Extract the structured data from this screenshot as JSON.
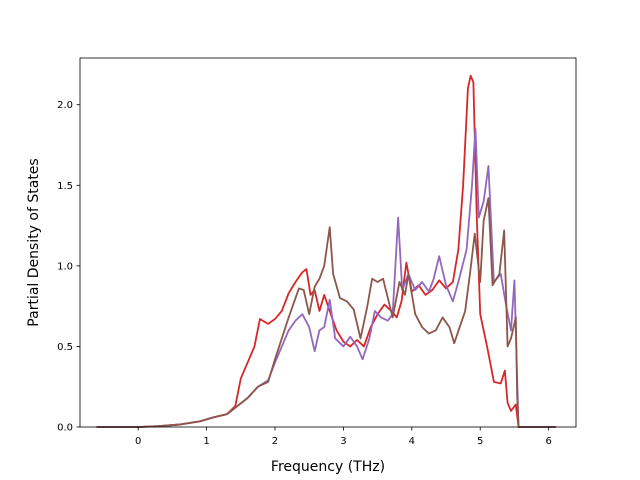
{
  "chart_data": {
    "type": "line",
    "title": "",
    "xlabel": "Frequency (THz)",
    "ylabel": "Partial Density of States",
    "xlim": [
      -0.85,
      6.4
    ],
    "ylim": [
      0.0,
      2.29
    ],
    "xticks": [
      0,
      1,
      2,
      3,
      4,
      5,
      6
    ],
    "yticks": [
      0.0,
      0.5,
      1.0,
      1.5,
      2.0
    ],
    "xtick_labels": [
      "0",
      "1",
      "2",
      "3",
      "4",
      "5",
      "6"
    ],
    "ytick_labels": [
      "0.0",
      "0.5",
      "1.0",
      "1.5",
      "2.0"
    ],
    "grid": false,
    "legend": "none",
    "series": [
      {
        "color": "#d62728",
        "points": [
          [
            -0.6,
            0.0
          ],
          [
            0.0,
            0.0
          ],
          [
            0.3,
            0.005
          ],
          [
            0.6,
            0.015
          ],
          [
            0.9,
            0.035
          ],
          [
            1.1,
            0.06
          ],
          [
            1.3,
            0.08
          ],
          [
            1.42,
            0.13
          ],
          [
            1.5,
            0.3
          ],
          [
            1.6,
            0.4
          ],
          [
            1.7,
            0.5
          ],
          [
            1.78,
            0.67
          ],
          [
            1.9,
            0.64
          ],
          [
            2.0,
            0.67
          ],
          [
            2.1,
            0.72
          ],
          [
            2.2,
            0.83
          ],
          [
            2.3,
            0.9
          ],
          [
            2.4,
            0.96
          ],
          [
            2.46,
            0.98
          ],
          [
            2.52,
            0.82
          ],
          [
            2.58,
            0.85
          ],
          [
            2.65,
            0.72
          ],
          [
            2.72,
            0.82
          ],
          [
            2.8,
            0.72
          ],
          [
            2.9,
            0.6
          ],
          [
            3.0,
            0.53
          ],
          [
            3.1,
            0.5
          ],
          [
            3.2,
            0.54
          ],
          [
            3.3,
            0.5
          ],
          [
            3.4,
            0.62
          ],
          [
            3.5,
            0.7
          ],
          [
            3.6,
            0.76
          ],
          [
            3.7,
            0.72
          ],
          [
            3.78,
            0.68
          ],
          [
            3.85,
            0.78
          ],
          [
            3.92,
            1.02
          ],
          [
            4.0,
            0.84
          ],
          [
            4.1,
            0.88
          ],
          [
            4.2,
            0.82
          ],
          [
            4.3,
            0.85
          ],
          [
            4.4,
            0.91
          ],
          [
            4.5,
            0.86
          ],
          [
            4.6,
            0.9
          ],
          [
            4.68,
            1.1
          ],
          [
            4.75,
            1.5
          ],
          [
            4.82,
            2.1
          ],
          [
            4.86,
            2.18
          ],
          [
            4.9,
            2.14
          ],
          [
            4.95,
            1.3
          ],
          [
            5.0,
            0.7
          ],
          [
            5.1,
            0.5
          ],
          [
            5.2,
            0.28
          ],
          [
            5.3,
            0.27
          ],
          [
            5.36,
            0.35
          ],
          [
            5.4,
            0.15
          ],
          [
            5.45,
            0.1
          ],
          [
            5.52,
            0.14
          ],
          [
            5.56,
            0.0
          ],
          [
            6.1,
            0.0
          ]
        ]
      },
      {
        "color": "#9467bd",
        "points": [
          [
            -0.6,
            0.0
          ],
          [
            0.0,
            0.0
          ],
          [
            0.3,
            0.005
          ],
          [
            0.6,
            0.015
          ],
          [
            0.9,
            0.035
          ],
          [
            1.1,
            0.06
          ],
          [
            1.3,
            0.08
          ],
          [
            1.45,
            0.13
          ],
          [
            1.6,
            0.18
          ],
          [
            1.75,
            0.25
          ],
          [
            1.9,
            0.29
          ],
          [
            2.0,
            0.4
          ],
          [
            2.1,
            0.5
          ],
          [
            2.2,
            0.6
          ],
          [
            2.3,
            0.66
          ],
          [
            2.4,
            0.7
          ],
          [
            2.5,
            0.62
          ],
          [
            2.58,
            0.47
          ],
          [
            2.65,
            0.6
          ],
          [
            2.72,
            0.62
          ],
          [
            2.8,
            0.79
          ],
          [
            2.88,
            0.55
          ],
          [
            3.0,
            0.5
          ],
          [
            3.1,
            0.56
          ],
          [
            3.2,
            0.5
          ],
          [
            3.28,
            0.42
          ],
          [
            3.38,
            0.55
          ],
          [
            3.46,
            0.72
          ],
          [
            3.55,
            0.68
          ],
          [
            3.65,
            0.66
          ],
          [
            3.72,
            0.7
          ],
          [
            3.8,
            1.3
          ],
          [
            3.86,
            0.85
          ],
          [
            3.95,
            0.95
          ],
          [
            4.05,
            0.85
          ],
          [
            4.15,
            0.9
          ],
          [
            4.25,
            0.84
          ],
          [
            4.32,
            0.92
          ],
          [
            4.4,
            1.06
          ],
          [
            4.5,
            0.88
          ],
          [
            4.6,
            0.78
          ],
          [
            4.68,
            0.9
          ],
          [
            4.8,
            1.1
          ],
          [
            4.88,
            1.5
          ],
          [
            4.93,
            1.85
          ],
          [
            4.98,
            1.3
          ],
          [
            5.05,
            1.4
          ],
          [
            5.12,
            1.62
          ],
          [
            5.2,
            0.9
          ],
          [
            5.3,
            0.95
          ],
          [
            5.38,
            0.75
          ],
          [
            5.45,
            0.6
          ],
          [
            5.5,
            0.91
          ],
          [
            5.54,
            0.3
          ],
          [
            5.56,
            0.0
          ],
          [
            6.1,
            0.0
          ]
        ]
      },
      {
        "color": "#8c564b",
        "points": [
          [
            -0.6,
            0.0
          ],
          [
            0.0,
            0.0
          ],
          [
            0.3,
            0.005
          ],
          [
            0.6,
            0.015
          ],
          [
            0.9,
            0.035
          ],
          [
            1.1,
            0.06
          ],
          [
            1.3,
            0.08
          ],
          [
            1.45,
            0.13
          ],
          [
            1.6,
            0.18
          ],
          [
            1.75,
            0.25
          ],
          [
            1.9,
            0.28
          ],
          [
            2.0,
            0.42
          ],
          [
            2.1,
            0.55
          ],
          [
            2.2,
            0.68
          ],
          [
            2.3,
            0.8
          ],
          [
            2.35,
            0.86
          ],
          [
            2.42,
            0.85
          ],
          [
            2.5,
            0.7
          ],
          [
            2.58,
            0.87
          ],
          [
            2.65,
            0.92
          ],
          [
            2.72,
            1.0
          ],
          [
            2.8,
            1.24
          ],
          [
            2.85,
            0.95
          ],
          [
            2.95,
            0.8
          ],
          [
            3.05,
            0.78
          ],
          [
            3.15,
            0.73
          ],
          [
            3.25,
            0.55
          ],
          [
            3.35,
            0.75
          ],
          [
            3.42,
            0.92
          ],
          [
            3.5,
            0.9
          ],
          [
            3.58,
            0.92
          ],
          [
            3.65,
            0.8
          ],
          [
            3.72,
            0.68
          ],
          [
            3.82,
            0.9
          ],
          [
            3.9,
            0.82
          ],
          [
            3.95,
            0.95
          ],
          [
            4.05,
            0.7
          ],
          [
            4.15,
            0.62
          ],
          [
            4.25,
            0.58
          ],
          [
            4.35,
            0.6
          ],
          [
            4.45,
            0.68
          ],
          [
            4.55,
            0.62
          ],
          [
            4.62,
            0.52
          ],
          [
            4.7,
            0.62
          ],
          [
            4.78,
            0.72
          ],
          [
            4.85,
            0.95
          ],
          [
            4.92,
            1.2
          ],
          [
            5.0,
            0.9
          ],
          [
            5.05,
            1.28
          ],
          [
            5.12,
            1.42
          ],
          [
            5.18,
            0.88
          ],
          [
            5.28,
            0.95
          ],
          [
            5.35,
            1.22
          ],
          [
            5.4,
            0.5
          ],
          [
            5.45,
            0.55
          ],
          [
            5.52,
            0.68
          ],
          [
            5.54,
            0.2
          ],
          [
            5.56,
            0.0
          ],
          [
            6.1,
            0.0
          ]
        ]
      }
    ]
  }
}
